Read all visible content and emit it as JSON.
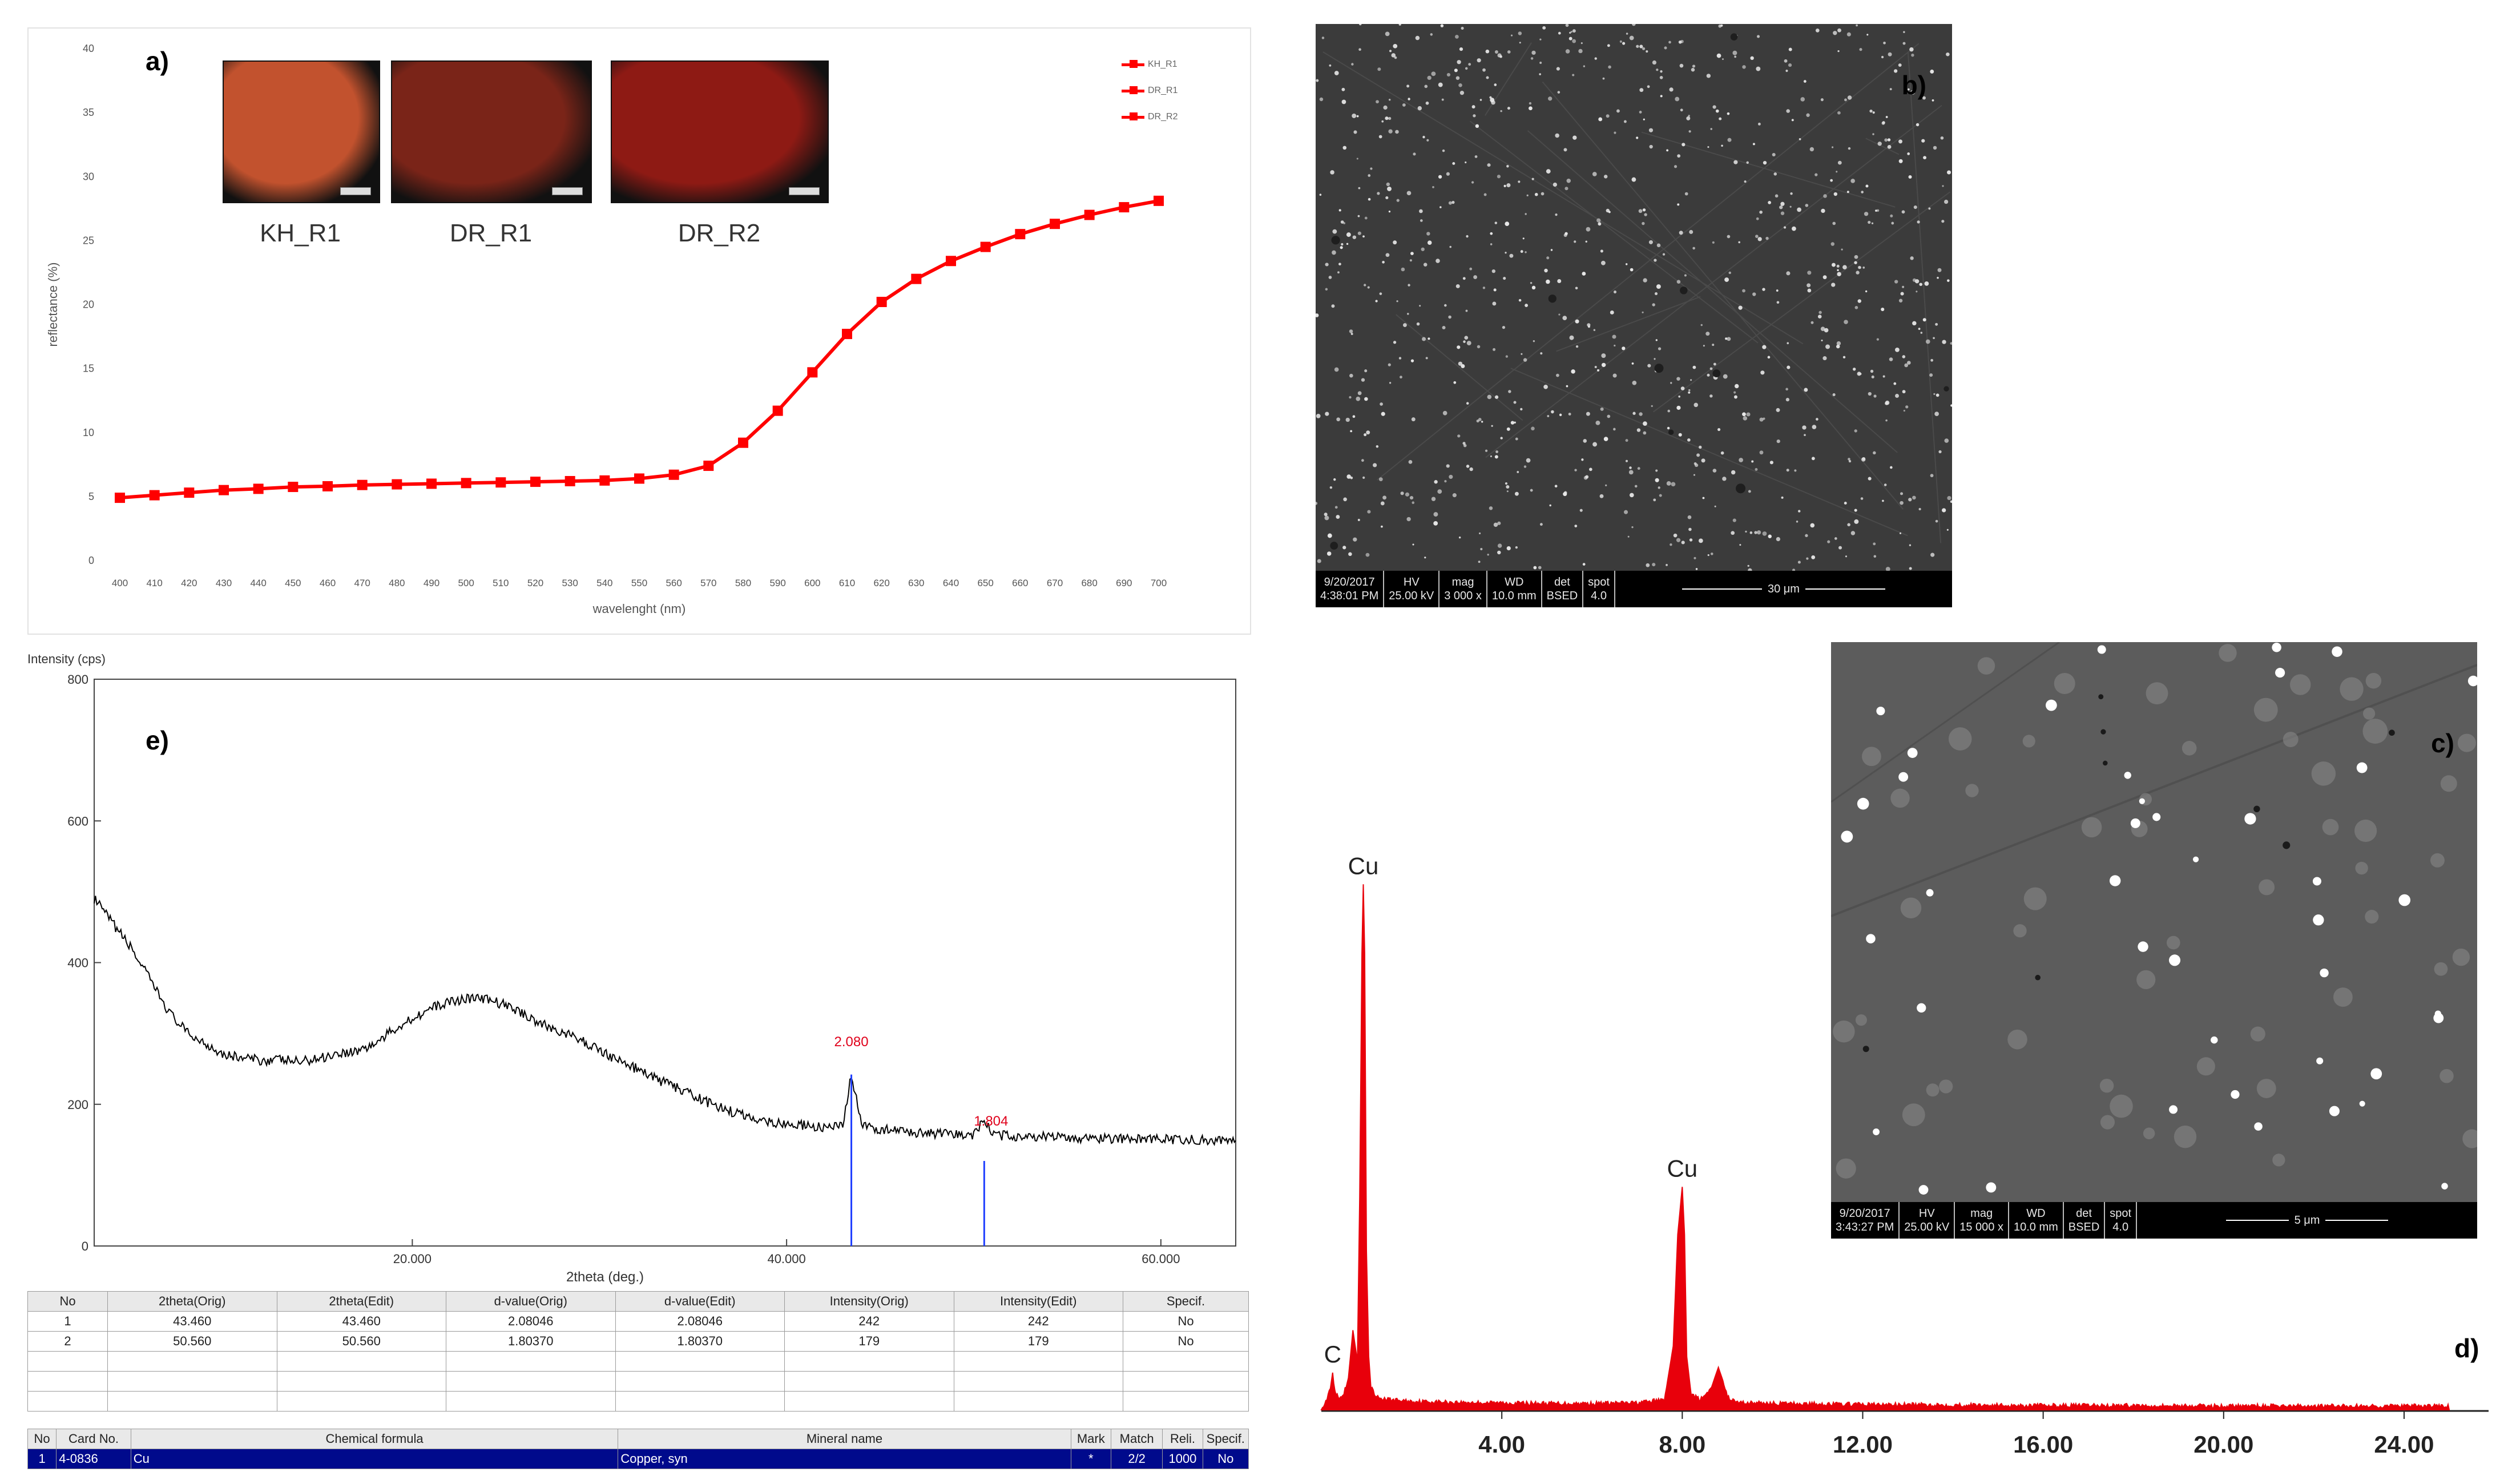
{
  "panels": {
    "a": {
      "letter": "a)"
    },
    "b": {
      "letter": "b)"
    },
    "c": {
      "letter": "c)"
    },
    "d": {
      "letter": "d)"
    },
    "e": {
      "letter": "e)"
    }
  },
  "samples": [
    {
      "label": "KH_R1",
      "color": "#c2522e"
    },
    {
      "label": "DR_R1",
      "color": "#7a2418"
    },
    {
      "label": "DR_R2",
      "color": "#8e1a14"
    }
  ],
  "sem_b": {
    "date": "9/20/2017",
    "time": "4:38:01 PM",
    "hv_label": "HV",
    "hv": "25.00 kV",
    "mag_label": "mag",
    "mag": "3 000 x",
    "wd_label": "WD",
    "wd": "10.0 mm",
    "det_label": "det",
    "det": "BSED",
    "spot_label": "spot",
    "spot": "4.0",
    "scale": "30 μm"
  },
  "sem_c": {
    "date": "9/20/2017",
    "time": "3:43:27 PM",
    "hv_label": "HV",
    "hv": "25.00 kV",
    "mag_label": "mag",
    "mag": "15 000 x",
    "wd_label": "WD",
    "wd": "10.0 mm",
    "det_label": "det",
    "det": "BSED",
    "spot_label": "spot",
    "spot": "4.0",
    "scale": "5 μm"
  },
  "xrd_table": {
    "headers": [
      "No",
      "2theta(Orig)",
      "2theta(Edit)",
      "d-value(Orig)",
      "d-value(Edit)",
      "Intensity(Orig)",
      "Intensity(Edit)",
      "Specif."
    ],
    "rows": [
      [
        "1",
        "43.460",
        "43.460",
        "2.08046",
        "2.08046",
        "242",
        "242",
        "No"
      ],
      [
        "2",
        "50.560",
        "50.560",
        "1.80370",
        "1.80370",
        "179",
        "179",
        "No"
      ]
    ]
  },
  "card_table": {
    "headers": [
      "No",
      "Card No.",
      "Chemical formula",
      "Mineral name",
      "Mark",
      "Match",
      "Reli.",
      "Specif."
    ],
    "rows": [
      [
        "1",
        "4-0836",
        "Cu",
        "Copper, syn",
        "*",
        "2/2",
        "1000",
        "No"
      ]
    ]
  },
  "chart_data": [
    {
      "id": "a",
      "type": "line",
      "title": "",
      "xlabel": "wavelenght (nm)",
      "ylabel": "reflectance (%)",
      "xlim": [
        400,
        700
      ],
      "ylim": [
        0,
        40
      ],
      "xticks": [
        400,
        410,
        420,
        430,
        440,
        450,
        460,
        470,
        480,
        490,
        500,
        510,
        520,
        530,
        540,
        550,
        560,
        570,
        580,
        590,
        600,
        610,
        620,
        630,
        640,
        650,
        660,
        670,
        680,
        690,
        700
      ],
      "yticks": [
        0,
        5,
        10,
        15,
        20,
        25,
        30,
        35,
        40
      ],
      "grid": false,
      "legend": "top-right",
      "color": "#ff0000",
      "legend_entries": [
        "KH_R1",
        "DR_R1",
        "DR_R2"
      ],
      "x": [
        400,
        410,
        420,
        430,
        440,
        450,
        460,
        470,
        480,
        490,
        500,
        510,
        520,
        530,
        540,
        550,
        560,
        570,
        580,
        590,
        600,
        610,
        620,
        630,
        640,
        650,
        660,
        670,
        680,
        690,
        700
      ],
      "y": [
        4.9,
        5.1,
        5.3,
        5.5,
        5.6,
        5.75,
        5.8,
        5.9,
        5.95,
        6.0,
        6.05,
        6.1,
        6.15,
        6.2,
        6.25,
        6.4,
        6.7,
        7.4,
        9.2,
        11.7,
        14.7,
        17.7,
        20.2,
        22.0,
        23.4,
        24.5,
        25.5,
        26.3,
        27.0,
        27.6,
        28.1
      ]
    },
    {
      "id": "e",
      "type": "line",
      "title": "",
      "xlabel": "2theta (deg.)",
      "ylabel": "Intensity (cps)",
      "xlim": [
        3,
        64
      ],
      "ylim": [
        0,
        800
      ],
      "xticks": [
        20.0,
        40.0,
        60.0
      ],
      "xtick_labels": [
        "20.000",
        "40.000",
        "60.000"
      ],
      "yticks": [
        0,
        200,
        400,
        600,
        800
      ],
      "grid": false,
      "color": "#000000",
      "x": [
        3,
        4,
        5,
        6,
        7,
        8,
        9,
        10,
        11,
        12,
        13,
        14,
        15,
        16,
        17,
        18,
        19,
        20,
        21,
        22,
        23,
        24,
        25,
        26,
        27,
        28,
        29,
        30,
        31,
        32,
        33,
        34,
        35,
        36,
        37,
        38,
        39,
        40,
        41,
        42,
        43,
        43.46,
        44,
        45,
        46,
        47,
        48,
        49,
        50,
        50.56,
        51,
        52,
        53,
        54,
        55,
        56,
        57,
        58,
        59,
        60,
        61,
        62,
        63,
        64
      ],
      "y": [
        490,
        455,
        420,
        375,
        330,
        300,
        285,
        270,
        265,
        262,
        263,
        260,
        265,
        272,
        275,
        285,
        305,
        322,
        335,
        345,
        350,
        348,
        340,
        327,
        312,
        302,
        290,
        277,
        262,
        250,
        236,
        225,
        212,
        200,
        190,
        182,
        176,
        172,
        170,
        167,
        168,
        242,
        170,
        165,
        162,
        160,
        158,
        157,
        157,
        179,
        157,
        155,
        155,
        154,
        153,
        152,
        152,
        151,
        151,
        150,
        150,
        150,
        149,
        149
      ],
      "peaks": [
        {
          "x": 43.46,
          "label": "2.080",
          "reference_height": 242
        },
        {
          "x": 50.56,
          "label": "1.804",
          "reference_height": 120
        }
      ]
    },
    {
      "id": "d",
      "type": "line",
      "title": "",
      "xlabel": "",
      "ylabel": "",
      "xlim": [
        0,
        25
      ],
      "ylim": [
        0,
        1000
      ],
      "xticks": [
        4,
        8,
        12,
        16,
        20,
        24
      ],
      "xtick_labels": [
        "4.00",
        "8.00",
        "12.00",
        "16.00",
        "20.00",
        "24.00"
      ],
      "grid": false,
      "color": "#e8000b",
      "x": [
        0,
        0.1,
        0.2,
        0.25,
        0.3,
        0.4,
        0.5,
        0.6,
        0.7,
        0.8,
        0.85,
        0.9,
        0.93,
        0.96,
        1.0,
        1.05,
        1.1,
        1.2,
        1.5,
        2.0,
        3.0,
        4.0,
        5.0,
        6.0,
        7.0,
        7.6,
        7.8,
        7.9,
        8.0,
        8.05,
        8.1,
        8.2,
        8.4,
        8.6,
        8.8,
        8.9,
        9.0,
        9.2,
        10,
        12,
        14,
        16,
        18,
        20,
        22,
        24,
        25
      ],
      "y": [
        0,
        10,
        40,
        70,
        30,
        15,
        25,
        60,
        150,
        90,
        400,
        860,
        990,
        860,
        300,
        100,
        40,
        20,
        15,
        12,
        10,
        9,
        8,
        8,
        9,
        15,
        120,
        330,
        420,
        330,
        100,
        25,
        15,
        30,
        80,
        55,
        20,
        10,
        8,
        6,
        5,
        4,
        4,
        3,
        3,
        3,
        3
      ],
      "peak_labels": [
        {
          "label": "C",
          "x": 0.25,
          "value": 70
        },
        {
          "label": "Cu",
          "x": 0.93,
          "value": 990
        },
        {
          "label": "Cu",
          "x": 8.0,
          "value": 420
        }
      ]
    }
  ]
}
